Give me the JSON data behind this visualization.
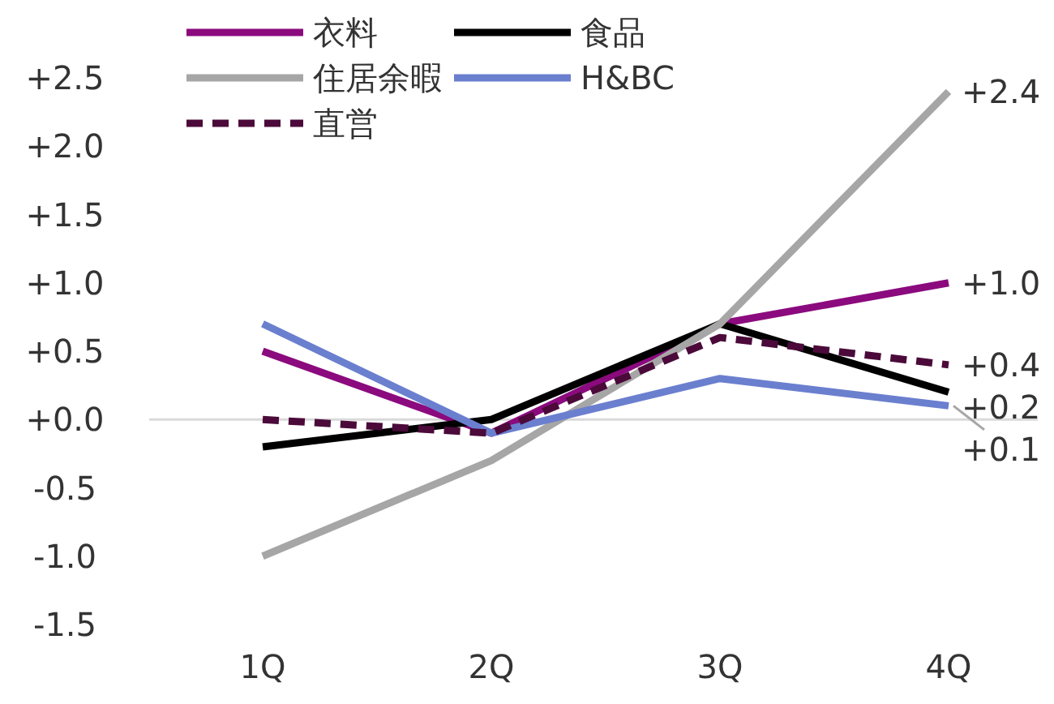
{
  "chart_data": {
    "type": "line",
    "categories": [
      "1Q",
      "2Q",
      "3Q",
      "4Q"
    ],
    "series": [
      {
        "name": "衣料",
        "color": "#8b0a7e",
        "values": [
          0.5,
          -0.1,
          0.7,
          1.0
        ],
        "value_labels": [
          null,
          null,
          null,
          "+1.0"
        ]
      },
      {
        "name": "食品",
        "color": "#000000",
        "values": [
          -0.2,
          0.0,
          0.7,
          0.2
        ],
        "value_labels": [
          null,
          null,
          null,
          "+0.2"
        ]
      },
      {
        "name": "住居余暇",
        "color": "#a6a6a6",
        "values": [
          -1.0,
          -0.3,
          0.7,
          2.4
        ],
        "value_labels": [
          null,
          null,
          null,
          "+2.4"
        ]
      },
      {
        "name": "H&BC",
        "color": "#6b7fcf",
        "values": [
          0.7,
          -0.1,
          0.3,
          0.1
        ],
        "value_labels": [
          null,
          null,
          null,
          "+0.1"
        ]
      },
      {
        "name": "直営",
        "color": "#4b0a3a",
        "values": [
          0.0,
          -0.1,
          0.6,
          0.4
        ],
        "value_labels": [
          null,
          null,
          null,
          "+0.4"
        ],
        "line_style": "dashed"
      }
    ],
    "ylim": [
      -1.5,
      2.5
    ],
    "yticks": [
      {
        "value": -1.5,
        "label": "-1.5"
      },
      {
        "value": -1.0,
        "label": "-1.0"
      },
      {
        "value": -0.5,
        "label": "-0.5"
      },
      {
        "value": 0,
        "label": "+0.0"
      },
      {
        "value": 0.5,
        "label": "+0.5"
      },
      {
        "value": 1.0,
        "label": "+1.0"
      },
      {
        "value": 1.5,
        "label": "+1.5"
      },
      {
        "value": 2.0,
        "label": "+2.0"
      },
      {
        "value": 2.5,
        "label": "+2.5"
      }
    ],
    "ref_lines": [
      {
        "axis": "y",
        "value": 0,
        "color": "#d9d9d9"
      }
    ],
    "grid": false,
    "legend": "top",
    "marker": "none"
  }
}
